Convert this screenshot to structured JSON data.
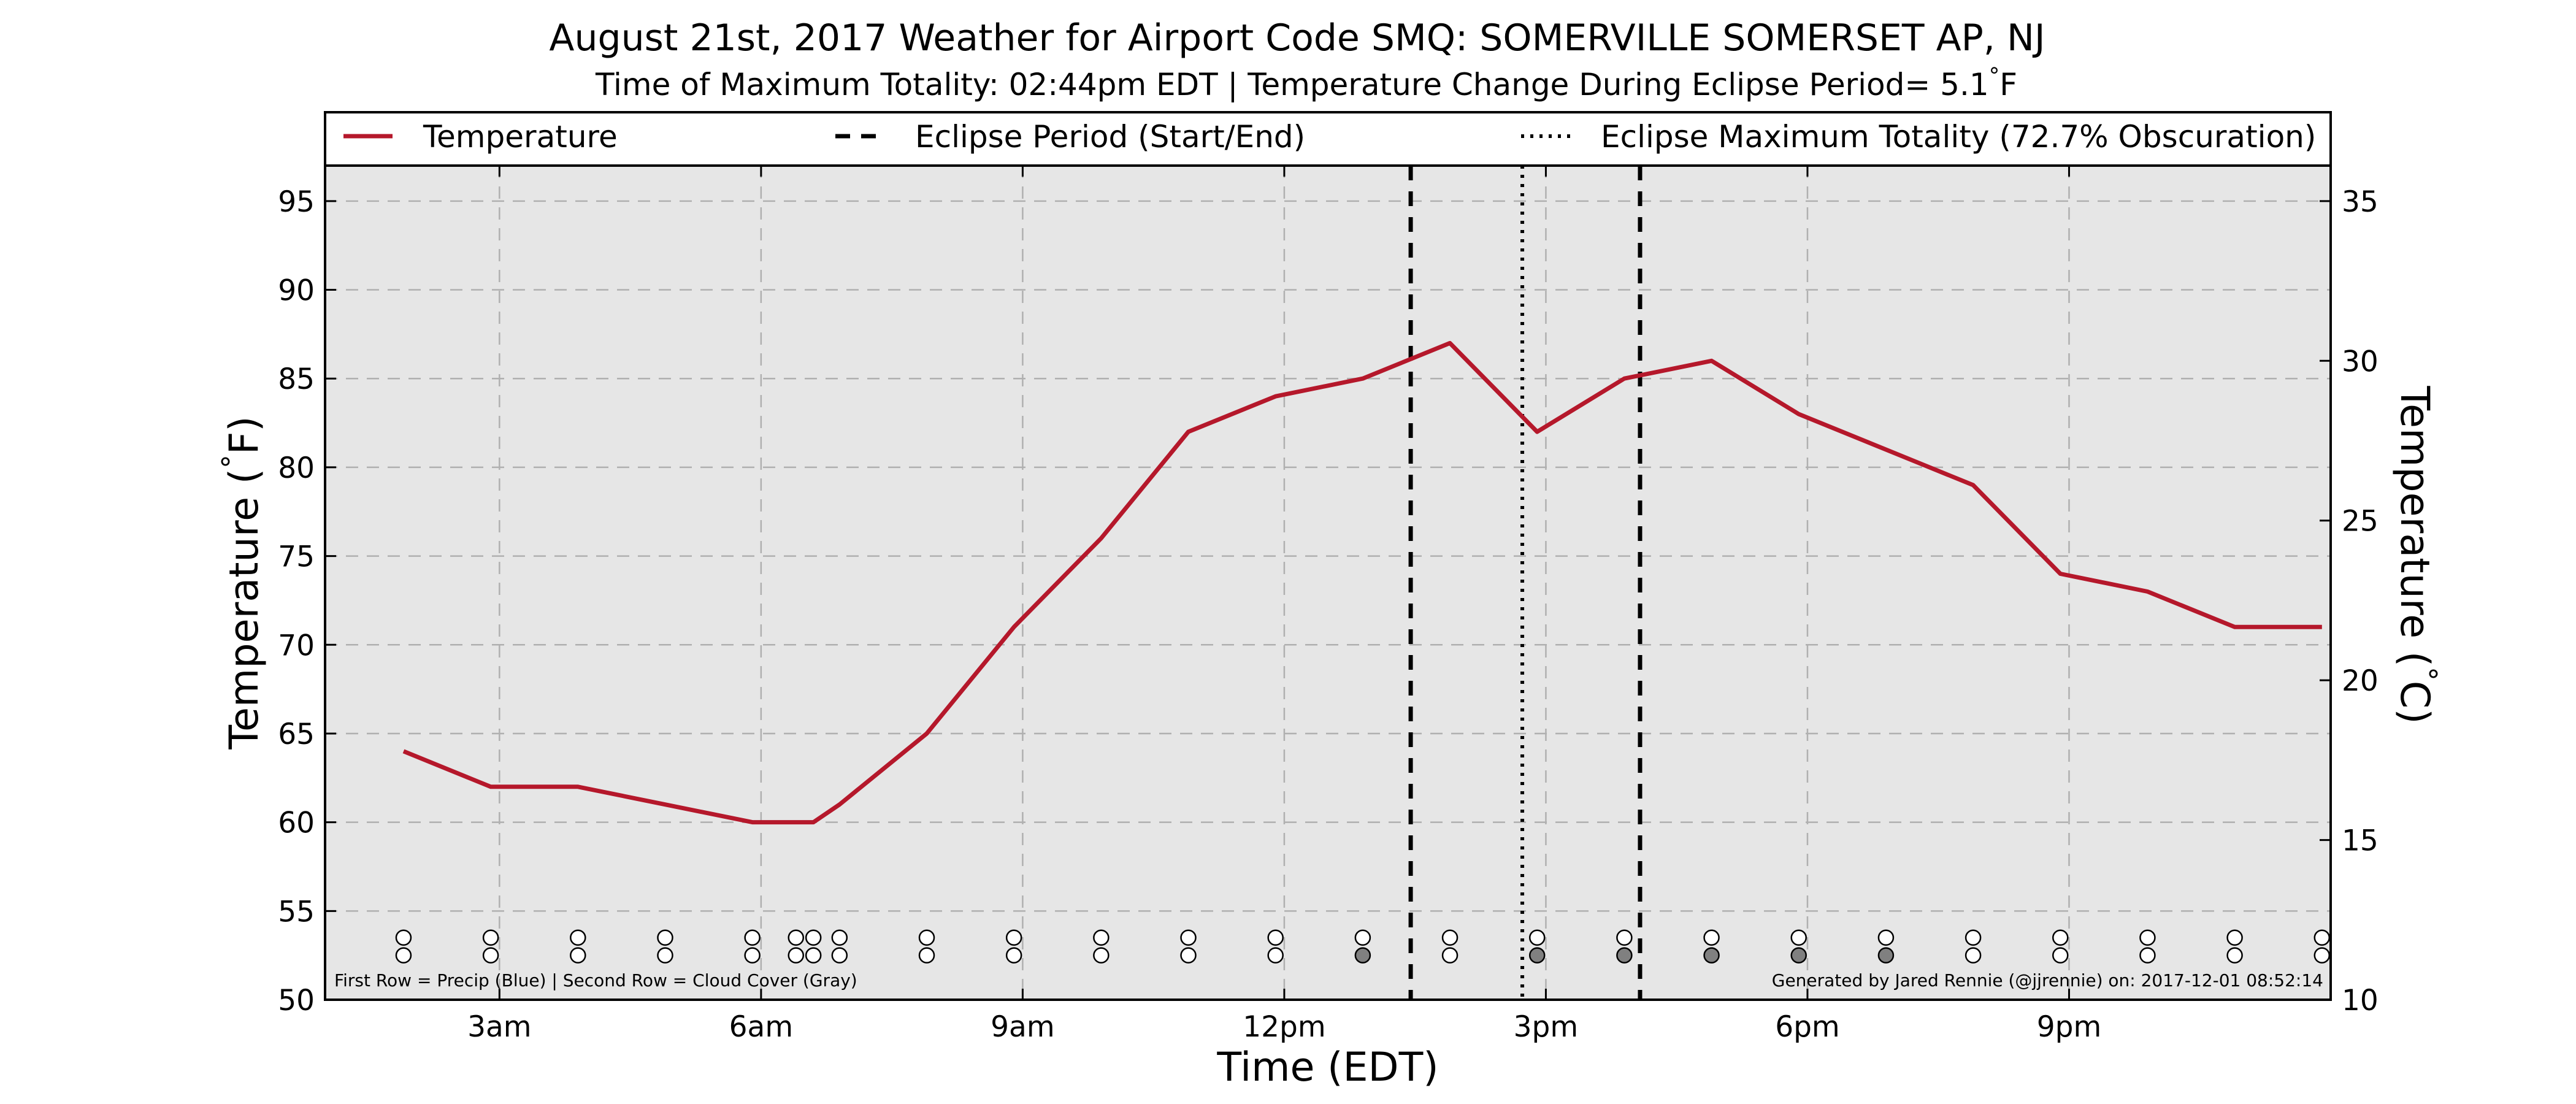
{
  "chart_data": {
    "type": "line",
    "title": "August 21st, 2017 Weather for Airport Code SMQ: SOMERVILLE SOMERSET AP, NJ",
    "subtitle": "Time of Maximum Totality: 02:44pm EDT | Temperature Change During Eclipse Period= 5.1$^\\circ$F",
    "xlabel": "Time (EDT)",
    "ylabel": "Temperature ($^\\circ$F)",
    "ylabel_right": "Temperature ($^\\circ$C)",
    "x_ticks": [
      {
        "hour": 3,
        "label": "3am"
      },
      {
        "hour": 6,
        "label": "6am"
      },
      {
        "hour": 9,
        "label": "9am"
      },
      {
        "hour": 12,
        "label": "12pm"
      },
      {
        "hour": 15,
        "label": "3pm"
      },
      {
        "hour": 18,
        "label": "6pm"
      },
      {
        "hour": 21,
        "label": "9pm"
      }
    ],
    "xlim": [
      1,
      24
    ],
    "ylim": [
      50,
      97
    ],
    "y_ticks": [
      50,
      55,
      60,
      65,
      70,
      75,
      80,
      85,
      90,
      95
    ],
    "y2lim": [
      10,
      36.11
    ],
    "y2_ticks": [
      10,
      15,
      20,
      25,
      30,
      35
    ],
    "grid": true,
    "legend_position": "top",
    "series": [
      {
        "name": "Temperature",
        "color": "#b5182b",
        "x": [
          1.9,
          2.9,
          3.9,
          4.9,
          5.9,
          6.4,
          6.6,
          6.9,
          7.9,
          8.9,
          9.9,
          10.9,
          11.9,
          12.9,
          13.9,
          14.9,
          15.9,
          16.9,
          17.9,
          18.9,
          19.9,
          20.9,
          21.9,
          22.9,
          23.9
        ],
        "y": [
          64,
          62,
          62,
          61,
          60,
          60,
          60,
          61,
          65,
          71,
          76,
          82,
          84,
          85,
          87,
          82,
          85,
          86,
          83,
          81,
          79,
          74,
          73,
          71,
          71
        ]
      }
    ],
    "eclipse_lines": {
      "start": 13.45,
      "end": 16.08,
      "maximum": 14.73
    },
    "legend": [
      {
        "label": "Temperature",
        "style": "solid"
      },
      {
        "label": "Eclipse Period (Start/End)",
        "style": "dashed"
      },
      {
        "label": "Eclipse Maximum Totality (72.7% Obscuration)",
        "style": "dotted"
      }
    ],
    "precip_cloud_markers": [
      {
        "x": 1.9,
        "precip": "clear",
        "cloud": "clear"
      },
      {
        "x": 2.9,
        "precip": "clear",
        "cloud": "clear"
      },
      {
        "x": 3.9,
        "precip": "clear",
        "cloud": "clear"
      },
      {
        "x": 4.9,
        "precip": "clear",
        "cloud": "clear"
      },
      {
        "x": 5.9,
        "precip": "clear",
        "cloud": "clear"
      },
      {
        "x": 6.4,
        "precip": "clear",
        "cloud": "clear"
      },
      {
        "x": 6.6,
        "precip": "clear",
        "cloud": "clear"
      },
      {
        "x": 6.9,
        "precip": "clear",
        "cloud": "clear"
      },
      {
        "x": 7.9,
        "precip": "clear",
        "cloud": "clear"
      },
      {
        "x": 8.9,
        "precip": "clear",
        "cloud": "clear"
      },
      {
        "x": 9.9,
        "precip": "clear",
        "cloud": "clear"
      },
      {
        "x": 10.9,
        "precip": "clear",
        "cloud": "clear"
      },
      {
        "x": 11.9,
        "precip": "clear",
        "cloud": "clear"
      },
      {
        "x": 12.9,
        "precip": "clear",
        "cloud": "gray"
      },
      {
        "x": 13.9,
        "precip": "clear",
        "cloud": "clear"
      },
      {
        "x": 14.9,
        "precip": "clear",
        "cloud": "gray"
      },
      {
        "x": 15.9,
        "precip": "clear",
        "cloud": "gray"
      },
      {
        "x": 16.9,
        "precip": "clear",
        "cloud": "gray"
      },
      {
        "x": 17.9,
        "precip": "clear",
        "cloud": "gray"
      },
      {
        "x": 18.9,
        "precip": "clear",
        "cloud": "gray"
      },
      {
        "x": 19.9,
        "precip": "clear",
        "cloud": "clear"
      },
      {
        "x": 20.9,
        "precip": "clear",
        "cloud": "clear"
      },
      {
        "x": 21.9,
        "precip": "clear",
        "cloud": "clear"
      },
      {
        "x": 22.9,
        "precip": "clear",
        "cloud": "clear"
      },
      {
        "x": 23.9,
        "precip": "clear",
        "cloud": "clear"
      }
    ],
    "marker_colors": {
      "clear": "#ffffff",
      "gray": "#808080"
    },
    "marker_rows": {
      "precip": 53.5,
      "cloud": 52.5
    },
    "footnote_left": "First Row = Precip (Blue) | Second Row = Cloud Cover (Gray)",
    "footnote_right": "Generated by Jared Rennie (@jjrennie) on: 2017-12-01 08:52:14",
    "colors": {
      "plot_background": "#e6e6e6",
      "grid": "#b0b0b0",
      "temperature_line": "#b5182b"
    }
  }
}
